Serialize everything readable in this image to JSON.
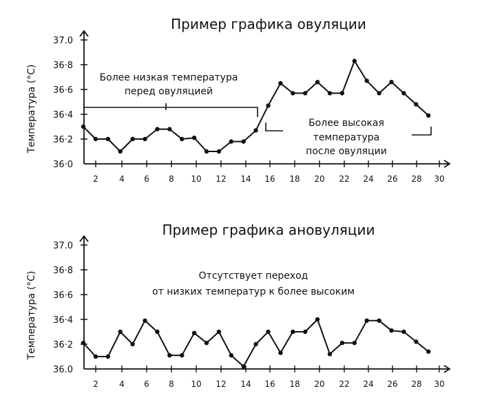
{
  "chart_data": [
    {
      "type": "line",
      "title": "Пример графика овуляции",
      "ylabel": "Температура (°С)",
      "xlabel": "",
      "ylim": [
        36.0,
        37.0
      ],
      "xlim": [
        1,
        30
      ],
      "yticks": [
        "36·0",
        "36·2",
        "36·4",
        "36·6",
        "36·8",
        "37.0"
      ],
      "ytick_values": [
        36.0,
        36.2,
        36.4,
        36.6,
        36.8,
        37.0
      ],
      "xticks": [
        2,
        4,
        6,
        8,
        10,
        12,
        14,
        16,
        18,
        20,
        22,
        24,
        26,
        28,
        30
      ],
      "x": [
        1,
        2,
        3,
        4,
        5,
        6,
        7,
        8,
        9,
        10,
        11,
        12,
        13,
        14,
        15,
        16,
        17,
        18,
        19,
        20,
        21,
        22,
        23,
        24,
        25,
        26,
        27,
        28,
        29
      ],
      "values": [
        36.3,
        36.2,
        36.2,
        36.1,
        36.2,
        36.2,
        36.28,
        36.28,
        36.2,
        36.21,
        36.1,
        36.1,
        36.18,
        36.18,
        36.27,
        36.47,
        36.65,
        36.57,
        36.57,
        36.66,
        36.57,
        36.57,
        36.83,
        36.67,
        36.57,
        36.66,
        36.57,
        36.48,
        36.39
      ],
      "annotations": [
        {
          "lines": [
            "Более низкая температура",
            "перед овуляцией"
          ]
        },
        {
          "lines": [
            "Более высокая",
            "температура",
            "после овуляции"
          ]
        }
      ]
    },
    {
      "type": "line",
      "title": "Пример графика ановуляции",
      "ylabel": "Температура (°С)",
      "xlabel": "",
      "ylim": [
        36.0,
        37.0
      ],
      "xlim": [
        1,
        30
      ],
      "yticks": [
        "36.0",
        "36·2",
        "36·4",
        "36·6",
        "36·8",
        "37.0"
      ],
      "ytick_values": [
        36.0,
        36.2,
        36.4,
        36.6,
        36.8,
        37.0
      ],
      "xticks": [
        2,
        4,
        6,
        8,
        10,
        12,
        14,
        16,
        18,
        20,
        22,
        24,
        26,
        28,
        30
      ],
      "x": [
        1,
        2,
        3,
        4,
        5,
        6,
        7,
        8,
        9,
        10,
        11,
        12,
        13,
        14,
        15,
        16,
        17,
        18,
        19,
        20,
        21,
        22,
        23,
        24,
        25,
        26,
        27,
        28,
        29
      ],
      "values": [
        36.21,
        36.1,
        36.1,
        36.3,
        36.2,
        36.39,
        36.3,
        36.11,
        36.11,
        36.29,
        36.21,
        36.3,
        36.11,
        36.02,
        36.2,
        36.3,
        36.13,
        36.3,
        36.3,
        36.4,
        36.12,
        36.21,
        36.21,
        36.39,
        36.39,
        36.31,
        36.3,
        36.22,
        36.14
      ],
      "annotations": [
        {
          "lines": [
            "Отсутствует переход",
            "от низких температур к более высоким"
          ]
        }
      ]
    }
  ]
}
